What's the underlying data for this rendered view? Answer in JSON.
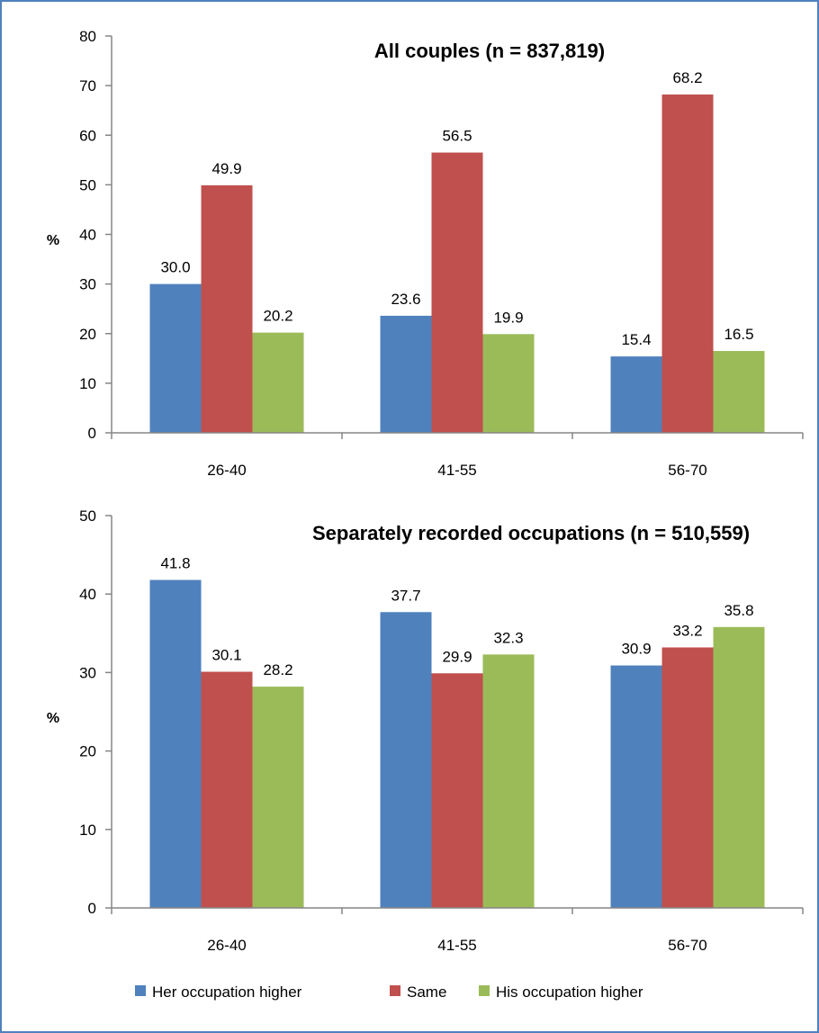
{
  "chart_data": [
    {
      "type": "bar",
      "title": "All couples (n = 837,819)",
      "ylabel": "%",
      "xlabel": "",
      "categories": [
        "26-40",
        "41-55",
        "56-70"
      ],
      "ylim": [
        0,
        80
      ],
      "yticks": [
        0,
        10,
        20,
        30,
        40,
        50,
        60,
        70,
        80
      ],
      "series": [
        {
          "name": "Her occupation higher",
          "values": [
            30.0,
            23.6,
            15.4
          ]
        },
        {
          "name": "Same",
          "values": [
            49.9,
            56.5,
            68.2
          ]
        },
        {
          "name": "His occupation higher",
          "values": [
            20.2,
            19.9,
            16.5
          ]
        }
      ],
      "value_labels": [
        [
          "30.0",
          "23.6",
          "15.4"
        ],
        [
          "49.9",
          "56.5",
          "68.2"
        ],
        [
          "20.2",
          "19.9",
          "16.5"
        ]
      ],
      "grid": false
    },
    {
      "type": "bar",
      "title": "Separately recorded occupations (n = 510,559)",
      "ylabel": "%",
      "xlabel": "",
      "categories": [
        "26-40",
        "41-55",
        "56-70"
      ],
      "ylim": [
        0,
        50
      ],
      "yticks": [
        0,
        10,
        20,
        30,
        40,
        50
      ],
      "series": [
        {
          "name": "Her occupation higher",
          "values": [
            41.8,
            37.7,
            30.9
          ]
        },
        {
          "name": "Same",
          "values": [
            30.1,
            29.9,
            33.2
          ]
        },
        {
          "name": "His occupation higher",
          "values": [
            28.2,
            32.3,
            35.8
          ]
        }
      ],
      "value_labels": [
        [
          "41.8",
          "37.7",
          "30.9"
        ],
        [
          "30.1",
          "29.9",
          "33.2"
        ],
        [
          "28.2",
          "32.3",
          "35.8"
        ]
      ],
      "grid": false
    }
  ],
  "legend": {
    "placement": "bottom",
    "items": [
      {
        "label": "Her occupation higher",
        "color": "#4f81bd"
      },
      {
        "label": "Same",
        "color": "#c0504d"
      },
      {
        "label": "His occupation higher",
        "color": "#9bbb59"
      }
    ]
  },
  "colors": {
    "series": [
      "#4f81bd",
      "#c0504d",
      "#9bbb59"
    ],
    "axis": "#868686",
    "frame": "#4f81bd"
  }
}
